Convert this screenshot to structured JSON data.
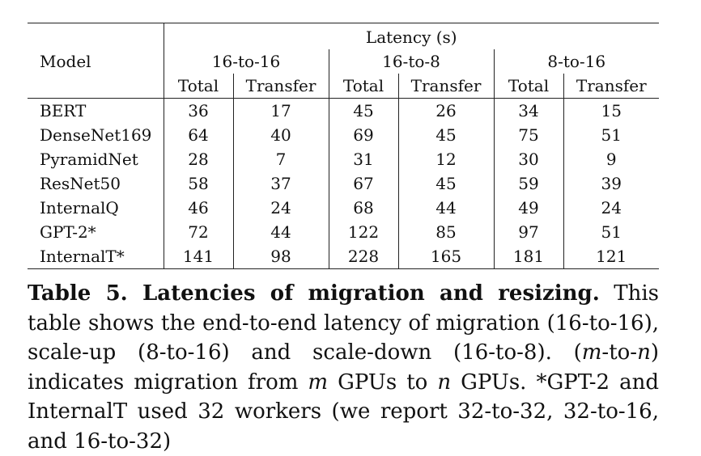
{
  "table": {
    "header": {
      "model": "Model",
      "latency": "Latency (s)",
      "groups": [
        "16-to-16",
        "16-to-8",
        "8-to-16"
      ],
      "subcols": [
        "Total",
        "Transfer",
        "Total",
        "Transfer",
        "Total",
        "Transfer"
      ]
    },
    "rows": [
      {
        "model": "BERT",
        "values": [
          "36",
          "17",
          "45",
          "26",
          "34",
          "15"
        ]
      },
      {
        "model": "DenseNet169",
        "values": [
          "64",
          "40",
          "69",
          "45",
          "75",
          "51"
        ]
      },
      {
        "model": "PyramidNet",
        "values": [
          "28",
          "7",
          "31",
          "12",
          "30",
          "9"
        ]
      },
      {
        "model": "ResNet50",
        "values": [
          "58",
          "37",
          "67",
          "45",
          "59",
          "39"
        ]
      },
      {
        "model": "InternalQ",
        "values": [
          "46",
          "24",
          "68",
          "44",
          "49",
          "24"
        ]
      },
      {
        "model": "GPT-2*",
        "values": [
          "72",
          "44",
          "122",
          "85",
          "97",
          "51"
        ]
      },
      {
        "model": "InternalT*",
        "values": [
          "141",
          "98",
          "228",
          "165",
          "181",
          "121"
        ]
      }
    ]
  },
  "caption": {
    "label": "Table 5. Latencies of migration and resizing.",
    "t1": " This table shows the end-to-end latency of migration (16-to-16), scale-up (8-to-16) and scale-down (16-to-8). (",
    "m1": "m",
    "t2": "-to-",
    "n1": "n",
    "t3": ") indicates migration from ",
    "m2": "m",
    "t4": " GPUs to ",
    "n2": "n",
    "t5": " GPUs. *GPT-2 and InternalT used 32 workers (we report 32-to-32, 32-to-16, and 16-to-32)"
  }
}
